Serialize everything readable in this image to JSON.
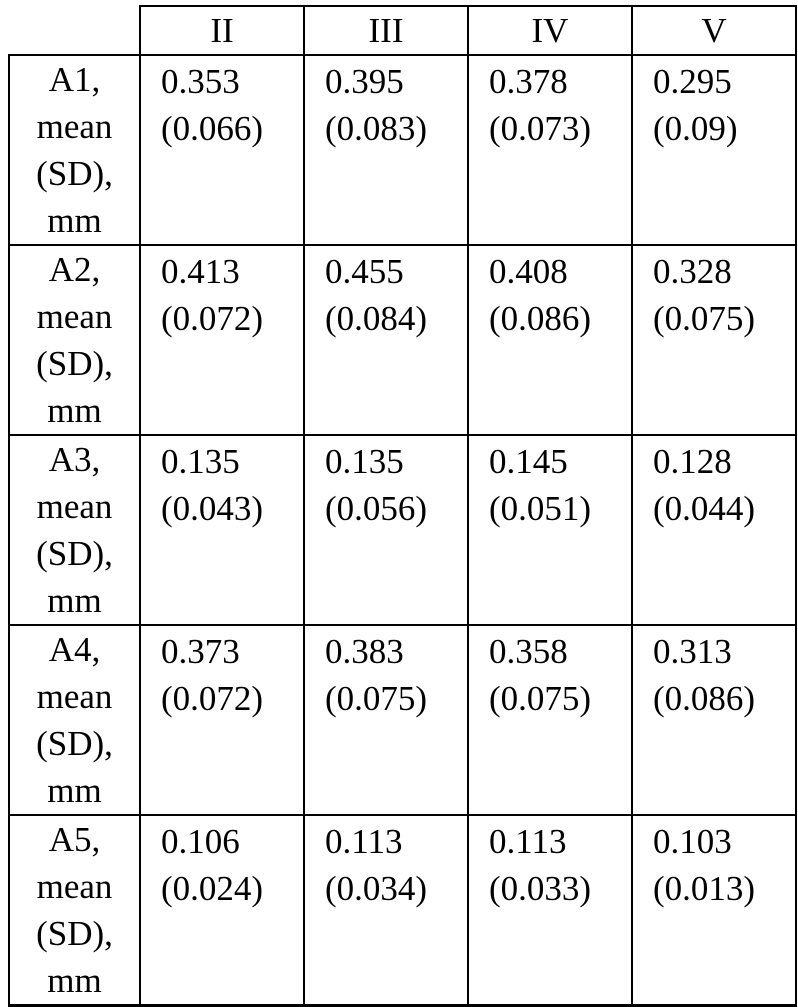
{
  "table": {
    "columns": [
      "II",
      "III",
      "IV",
      "V"
    ],
    "rows": [
      {
        "label": "A1, mean (SD), mm",
        "cells": [
          {
            "mean": "0.353",
            "sd": "(0.066)"
          },
          {
            "mean": "0.395",
            "sd": "(0.083)"
          },
          {
            "mean": "0.378",
            "sd": "(0.073)"
          },
          {
            "mean": "0.295",
            "sd": "(0.09)"
          }
        ]
      },
      {
        "label": "A2, mean (SD), mm",
        "cells": [
          {
            "mean": "0.413",
            "sd": "(0.072)"
          },
          {
            "mean": "0.455",
            "sd": "(0.084)"
          },
          {
            "mean": "0.408",
            "sd": "(0.086)"
          },
          {
            "mean": "0.328",
            "sd": "(0.075)"
          }
        ]
      },
      {
        "label": "A3, mean (SD), mm",
        "cells": [
          {
            "mean": "0.135",
            "sd": "(0.043)"
          },
          {
            "mean": "0.135",
            "sd": "(0.056)"
          },
          {
            "mean": "0.145",
            "sd": "(0.051)"
          },
          {
            "mean": "0.128",
            "sd": "(0.044)"
          }
        ]
      },
      {
        "label": "A4, mean (SD), mm",
        "cells": [
          {
            "mean": "0.373",
            "sd": "(0.072)"
          },
          {
            "mean": "0.383",
            "sd": "(0.075)"
          },
          {
            "mean": "0.358",
            "sd": "(0.075)"
          },
          {
            "mean": "0.313",
            "sd": "(0.086)"
          }
        ]
      },
      {
        "label": "A5, mean (SD), mm",
        "cells": [
          {
            "mean": "0.106",
            "sd": "(0.024)"
          },
          {
            "mean": "0.113",
            "sd": "(0.034)"
          },
          {
            "mean": "0.113",
            "sd": "(0.033)"
          },
          {
            "mean": "0.103",
            "sd": "(0.013)"
          }
        ]
      }
    ]
  }
}
